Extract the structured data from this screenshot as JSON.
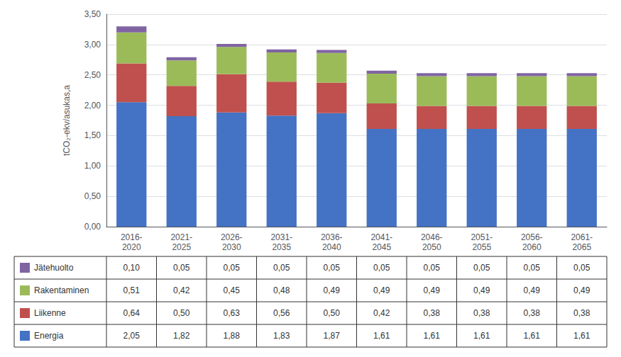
{
  "chart_data": {
    "type": "bar",
    "stacked": true,
    "ylabel": "tCO₂-ekv/asukas,a",
    "categories": [
      "2016-\n2020",
      "2021-\n2025",
      "2026-\n2030",
      "2031-\n2035",
      "2036-\n2040",
      "2041-\n2045",
      "2046-\n2050",
      "2051-\n2055",
      "2056-\n2060",
      "2061-\n2065"
    ],
    "series": [
      {
        "name": "Energia",
        "color": "#4472C4",
        "values": [
          2.05,
          1.82,
          1.88,
          1.83,
          1.87,
          1.61,
          1.61,
          1.61,
          1.61,
          1.61
        ],
        "value_labels": [
          "2,05",
          "1,82",
          "1,88",
          "1,83",
          "1,87",
          "1,61",
          "1,61",
          "1,61",
          "1,61",
          "1,61"
        ]
      },
      {
        "name": "Liikenne",
        "color": "#C0504D",
        "values": [
          0.64,
          0.5,
          0.63,
          0.56,
          0.5,
          0.42,
          0.38,
          0.38,
          0.38,
          0.38
        ],
        "value_labels": [
          "0,64",
          "0,50",
          "0,63",
          "0,56",
          "0,50",
          "0,42",
          "0,38",
          "0,38",
          "0,38",
          "0,38"
        ]
      },
      {
        "name": "Rakentaminen",
        "color": "#9BBB59",
        "values": [
          0.51,
          0.42,
          0.45,
          0.48,
          0.49,
          0.49,
          0.49,
          0.49,
          0.49,
          0.49
        ],
        "value_labels": [
          "0,51",
          "0,42",
          "0,45",
          "0,48",
          "0,49",
          "0,49",
          "0,49",
          "0,49",
          "0,49",
          "0,49"
        ]
      },
      {
        "name": "Jätehuolto",
        "color": "#8064A2",
        "values": [
          0.1,
          0.05,
          0.05,
          0.05,
          0.05,
          0.05,
          0.05,
          0.05,
          0.05,
          0.05
        ],
        "value_labels": [
          "0,10",
          "0,05",
          "0,05",
          "0,05",
          "0,05",
          "0,05",
          "0,05",
          "0,05",
          "0,05",
          "0,05"
        ]
      }
    ],
    "ylim": [
      0,
      3.5
    ],
    "yticks": [
      {
        "value": 0.0,
        "label": "0,00"
      },
      {
        "value": 0.5,
        "label": "0,50"
      },
      {
        "value": 1.0,
        "label": "1,00"
      },
      {
        "value": 1.5,
        "label": "1,50"
      },
      {
        "value": 2.0,
        "label": "2,00"
      },
      {
        "value": 2.5,
        "label": "2,50"
      },
      {
        "value": 3.0,
        "label": "3,00"
      },
      {
        "value": 3.5,
        "label": "3,50"
      }
    ],
    "grid": true
  }
}
